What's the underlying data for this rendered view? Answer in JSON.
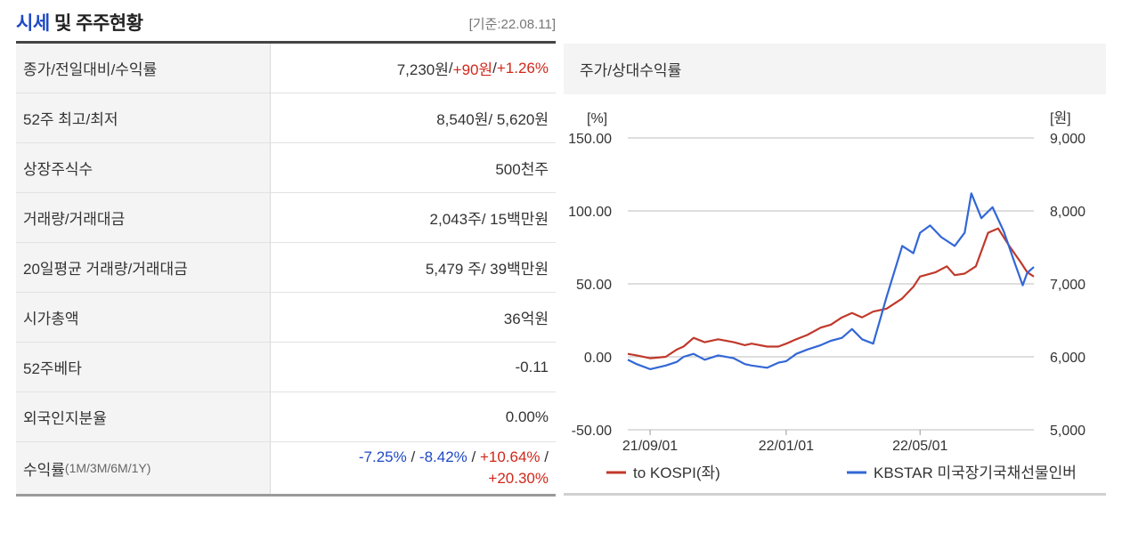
{
  "header": {
    "title_accent": "시세",
    "title_rest": " 및 주주현황",
    "basis": "[기준:22.08.11]"
  },
  "stats": [
    {
      "label": "종가/전일대비/수익률",
      "value": "7,230원 / +90원 / +1.26%"
    },
    {
      "label": "52주 최고/최저",
      "value": "8,540원/ 5,620원"
    },
    {
      "label": "상장주식수",
      "value": "500천주"
    },
    {
      "label": "거래량/거래대금",
      "value": "2,043주/ 15백만원"
    },
    {
      "label": "20일평균 거래량/거래대금",
      "value": "5,479 주/ 39백만원"
    },
    {
      "label": "시가총액",
      "value": "36억원"
    },
    {
      "label": "52주베타",
      "value": "-0.11"
    },
    {
      "label": "외국인지분율",
      "value": "0.00%"
    }
  ],
  "price_row": {
    "close": "7,230원",
    "sep": " / ",
    "change": "+90원",
    "rate": "+1.26%"
  },
  "returns_row": {
    "label_main": "수익률",
    "label_sub": "(1M/3M/6M/1Y)",
    "m1": "-7.25%",
    "m3": "-8.42%",
    "m6": "+10.64%",
    "y1": "+20.30%",
    "sep": " / "
  },
  "chart_panel": {
    "title": "주가/상대수익률"
  },
  "chart_data": {
    "type": "line",
    "left_axis_unit": "[%]",
    "right_axis_unit": "[원]",
    "left_ticks": [
      "150.00",
      "100.00",
      "50.00",
      "0.00",
      "-50.00"
    ],
    "right_ticks": [
      "9,000",
      "8,000",
      "7,000",
      "6,000",
      "5,000"
    ],
    "x_ticks": [
      "21/09/01",
      "22/01/01",
      "22/05/01"
    ],
    "left_range": [
      -50,
      150
    ],
    "right_range": [
      5000,
      9000
    ],
    "x_range": [
      "2021-08-12",
      "2022-08-11"
    ],
    "series": [
      {
        "name": "to KOSPI(좌)",
        "axis": "left",
        "color": "#c0392b",
        "points": [
          [
            "2021-08-12",
            2
          ],
          [
            "2021-08-20",
            1
          ],
          [
            "2021-09-01",
            -1
          ],
          [
            "2021-09-15",
            0
          ],
          [
            "2021-09-25",
            5
          ],
          [
            "2021-10-01",
            7
          ],
          [
            "2021-10-10",
            13
          ],
          [
            "2021-10-20",
            10
          ],
          [
            "2021-11-01",
            12
          ],
          [
            "2021-11-15",
            10
          ],
          [
            "2021-11-25",
            8
          ],
          [
            "2021-12-01",
            9
          ],
          [
            "2021-12-15",
            7
          ],
          [
            "2021-12-25",
            7
          ],
          [
            "2022-01-01",
            9
          ],
          [
            "2022-01-10",
            12
          ],
          [
            "2022-01-20",
            15
          ],
          [
            "2022-02-01",
            20
          ],
          [
            "2022-02-10",
            22
          ],
          [
            "2022-02-20",
            27
          ],
          [
            "2022-03-01",
            30
          ],
          [
            "2022-03-10",
            27
          ],
          [
            "2022-03-20",
            31
          ],
          [
            "2022-04-01",
            33
          ],
          [
            "2022-04-15",
            40
          ],
          [
            "2022-04-25",
            48
          ],
          [
            "2022-05-01",
            55
          ],
          [
            "2022-05-15",
            58
          ],
          [
            "2022-05-25",
            62
          ],
          [
            "2022-06-01",
            56
          ],
          [
            "2022-06-10",
            57
          ],
          [
            "2022-06-20",
            62
          ],
          [
            "2022-07-01",
            85
          ],
          [
            "2022-07-10",
            88
          ],
          [
            "2022-07-20",
            76
          ],
          [
            "2022-07-30",
            65
          ],
          [
            "2022-08-05",
            58
          ],
          [
            "2022-08-11",
            55
          ]
        ]
      },
      {
        "name": "KBSTAR 미국장기국채선물인버",
        "axis": "right",
        "color": "#3367d6",
        "points": [
          [
            "2021-08-12",
            5960
          ],
          [
            "2021-08-20",
            5900
          ],
          [
            "2021-09-01",
            5830
          ],
          [
            "2021-09-15",
            5880
          ],
          [
            "2021-09-25",
            5930
          ],
          [
            "2021-10-01",
            6000
          ],
          [
            "2021-10-10",
            6040
          ],
          [
            "2021-10-20",
            5960
          ],
          [
            "2021-11-01",
            6020
          ],
          [
            "2021-11-15",
            5980
          ],
          [
            "2021-11-25",
            5900
          ],
          [
            "2021-12-01",
            5880
          ],
          [
            "2021-12-15",
            5850
          ],
          [
            "2021-12-25",
            5920
          ],
          [
            "2022-01-01",
            5940
          ],
          [
            "2022-01-10",
            6040
          ],
          [
            "2022-01-20",
            6100
          ],
          [
            "2022-02-01",
            6160
          ],
          [
            "2022-02-10",
            6220
          ],
          [
            "2022-02-20",
            6260
          ],
          [
            "2022-03-01",
            6380
          ],
          [
            "2022-03-10",
            6240
          ],
          [
            "2022-03-20",
            6180
          ],
          [
            "2022-04-01",
            6820
          ],
          [
            "2022-04-15",
            7520
          ],
          [
            "2022-04-25",
            7420
          ],
          [
            "2022-05-01",
            7700
          ],
          [
            "2022-05-10",
            7800
          ],
          [
            "2022-05-20",
            7640
          ],
          [
            "2022-06-01",
            7520
          ],
          [
            "2022-06-10",
            7700
          ],
          [
            "2022-06-16",
            8240
          ],
          [
            "2022-06-25",
            7900
          ],
          [
            "2022-07-05",
            8050
          ],
          [
            "2022-07-15",
            7720
          ],
          [
            "2022-07-25",
            7280
          ],
          [
            "2022-08-01",
            6980
          ],
          [
            "2022-08-05",
            7150
          ],
          [
            "2022-08-11",
            7230
          ]
        ]
      }
    ]
  }
}
